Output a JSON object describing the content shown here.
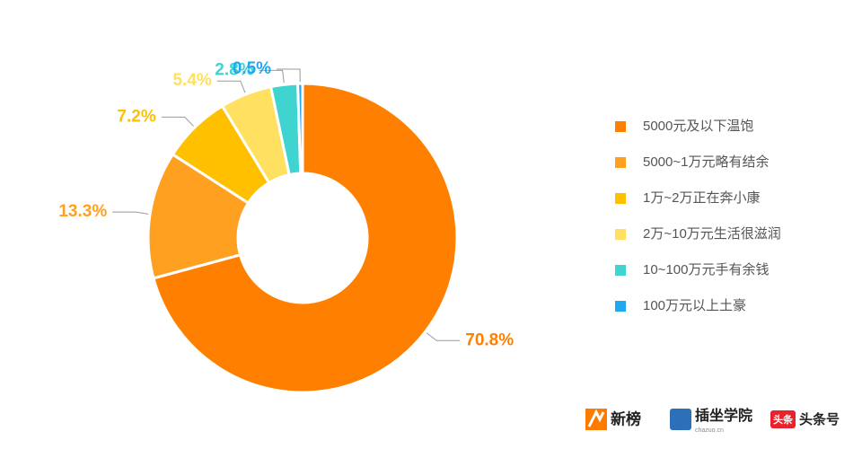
{
  "chart_data": {
    "type": "donut",
    "categories": [
      "5000元及以下温饱",
      "5000~1万元略有结余",
      "1万~2万正在奔小康",
      "2万~10万元生活很滋润",
      "10~100万元手有余钱",
      "100万元以上土豪"
    ],
    "values": [
      70.8,
      13.3,
      7.2,
      5.4,
      2.8,
      0.5
    ],
    "value_labels": [
      "70.8%",
      "13.3%",
      "7.2%",
      "5.4%",
      "2.8%",
      "0.5%"
    ],
    "colors": [
      "#ff8000",
      "#ffa020",
      "#ffc000",
      "#ffe060",
      "#40d4d0",
      "#20a8f0"
    ],
    "legend": "right"
  },
  "logos": {
    "xinbang": "新榜",
    "chazuo": "插坐学院",
    "chazuo_url": "chazuo.cn",
    "toutiao_badge": "头条",
    "toutiao": "头条号"
  }
}
